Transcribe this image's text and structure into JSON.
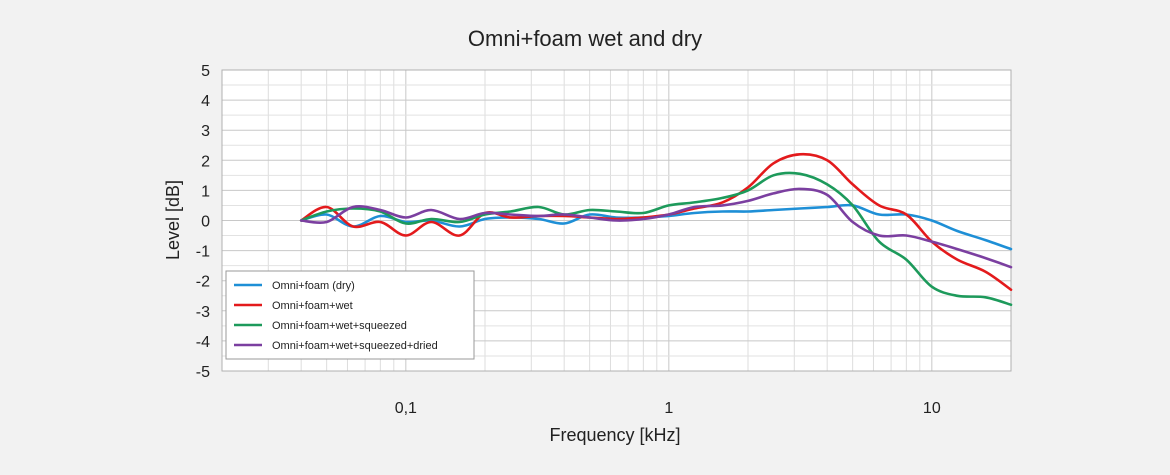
{
  "chart_data": {
    "type": "line",
    "title": "Omni+foam wet and dry",
    "xlabel": "Frequency [kHz]",
    "ylabel": "Level [dB]",
    "xscale": "log",
    "xlim": [
      0.02,
      20
    ],
    "ylim": [
      -5,
      5
    ],
    "x_tick_values": [
      0.1,
      1,
      10
    ],
    "x_tick_labels": [
      "0,1",
      "1",
      "10"
    ],
    "y_tick_values": [
      5,
      4,
      3,
      2,
      1,
      0,
      -1,
      -2,
      -3,
      -4,
      -5
    ],
    "y_tick_labels": [
      "5",
      "4",
      "3",
      "2",
      "1",
      "0",
      "-1",
      "-2",
      "-3",
      "-4",
      "-5"
    ],
    "grid": true,
    "legend_position": "bottom-left",
    "series": [
      {
        "name": "Omni+foam (dry)",
        "color": "#1e8fd6",
        "x": [
          0.04,
          0.05,
          0.063,
          0.08,
          0.1,
          0.125,
          0.16,
          0.2,
          0.25,
          0.32,
          0.4,
          0.5,
          0.63,
          0.8,
          1,
          1.25,
          1.6,
          2,
          2.5,
          3.15,
          4,
          5,
          6.3,
          8,
          10,
          12.5,
          16,
          20
        ],
        "y": [
          0.0,
          0.2,
          -0.2,
          0.15,
          -0.05,
          0.0,
          -0.2,
          0.05,
          0.1,
          0.05,
          -0.1,
          0.2,
          0.1,
          0.1,
          0.15,
          0.25,
          0.3,
          0.3,
          0.35,
          0.4,
          0.45,
          0.5,
          0.2,
          0.2,
          0.0,
          -0.35,
          -0.65,
          -0.95
        ]
      },
      {
        "name": "Omni+foam+wet",
        "color": "#e31a1c",
        "x": [
          0.04,
          0.05,
          0.063,
          0.08,
          0.1,
          0.125,
          0.16,
          0.2,
          0.25,
          0.32,
          0.4,
          0.5,
          0.63,
          0.8,
          1,
          1.25,
          1.6,
          2,
          2.5,
          3.15,
          4,
          5,
          6.3,
          8,
          10,
          12.5,
          16,
          20
        ],
        "y": [
          0.0,
          0.45,
          -0.2,
          -0.05,
          -0.5,
          -0.05,
          -0.5,
          0.25,
          0.1,
          0.15,
          0.15,
          0.1,
          0.05,
          0.1,
          0.2,
          0.4,
          0.6,
          1.1,
          1.9,
          2.2,
          2.0,
          1.2,
          0.5,
          0.2,
          -0.7,
          -1.3,
          -1.7,
          -2.3
        ]
      },
      {
        "name": "Omni+foam+wet+squeezed",
        "color": "#1d9a5b",
        "x": [
          0.04,
          0.05,
          0.063,
          0.08,
          0.1,
          0.125,
          0.16,
          0.2,
          0.25,
          0.32,
          0.4,
          0.5,
          0.63,
          0.8,
          1,
          1.25,
          1.6,
          2,
          2.5,
          3.15,
          4,
          5,
          6.3,
          8,
          10,
          12.5,
          16,
          20
        ],
        "y": [
          0.0,
          0.3,
          0.4,
          0.3,
          -0.1,
          0.05,
          -0.05,
          0.2,
          0.3,
          0.45,
          0.2,
          0.35,
          0.3,
          0.25,
          0.5,
          0.6,
          0.75,
          1.0,
          1.5,
          1.55,
          1.2,
          0.5,
          -0.7,
          -1.3,
          -2.2,
          -2.5,
          -2.55,
          -2.8
        ]
      },
      {
        "name": "Omni+foam+wet+squeezed+dried",
        "color": "#7b3fa0",
        "x": [
          0.04,
          0.05,
          0.063,
          0.08,
          0.1,
          0.125,
          0.16,
          0.2,
          0.25,
          0.32,
          0.4,
          0.5,
          0.63,
          0.8,
          1,
          1.25,
          1.6,
          2,
          2.5,
          3.15,
          4,
          5,
          6.3,
          8,
          10,
          12.5,
          16,
          20
        ],
        "y": [
          0.0,
          -0.05,
          0.45,
          0.35,
          0.1,
          0.35,
          0.05,
          0.25,
          0.2,
          0.15,
          0.2,
          0.1,
          0.0,
          0.05,
          0.2,
          0.45,
          0.5,
          0.65,
          0.9,
          1.05,
          0.85,
          -0.05,
          -0.5,
          -0.5,
          -0.7,
          -0.95,
          -1.25,
          -1.55
        ]
      }
    ]
  }
}
